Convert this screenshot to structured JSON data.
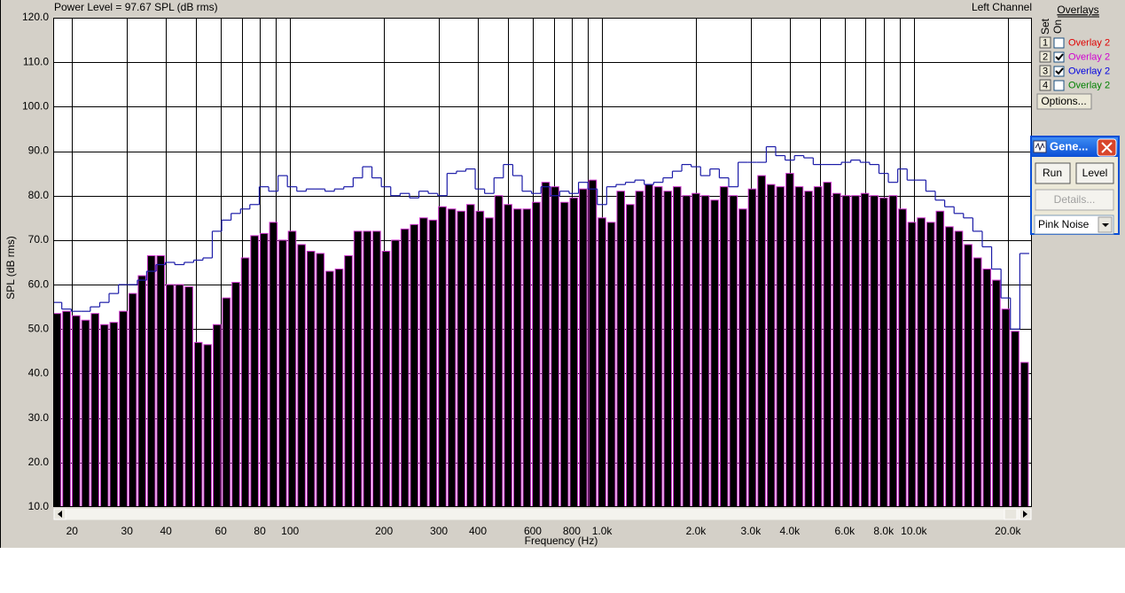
{
  "chart_data": {
    "type": "bar",
    "title": "Power Level = 97.67 SPL (dB rms)",
    "subtitle": "Left Channel",
    "x_label": "Frequency (Hz)",
    "y_label": "SPL (dB rms)",
    "log_x": true,
    "grid": true,
    "x": [
      17.9,
      19.2,
      20.6,
      22.1,
      23.7,
      25.4,
      27.2,
      29.2,
      31.3,
      33.5,
      35.9,
      38.5,
      41.2,
      44.2,
      47.4,
      50.8,
      54.4,
      58.3,
      62.5,
      67.0,
      71.8,
      76.9,
      82.5,
      88.4,
      94.7,
      101.5,
      108.8,
      116.6,
      125,
      134.0,
      143.6,
      153.9,
      164.9,
      176.8,
      189.5,
      203.1,
      217.6,
      233.3,
      250,
      268.0,
      287.2,
      307.8,
      329.9,
      353.6,
      378.9,
      406.1,
      435.3,
      466.5,
      500,
      535.9,
      574.3,
      615.6,
      659.8,
      707.1,
      757.9,
      812.3,
      870.6,
      933.0,
      1000,
      1072,
      1149,
      1231,
      1320,
      1414,
      1516,
      1625,
      1741,
      1866,
      2000,
      2144,
      2297,
      2462,
      2639,
      2828,
      3031,
      3249,
      3482,
      3732,
      4000,
      4287,
      4595,
      4925,
      5278,
      5657,
      6063,
      6498,
      6964,
      7464,
      8000,
      8574,
      9190,
      9849,
      10556,
      11314,
      12126,
      12996,
      13929,
      14929,
      16000,
      17148,
      18379,
      19698,
      21112,
      22627
    ],
    "series": [
      {
        "type": "bar",
        "color": "#000000",
        "edge_color": "#cc33cc",
        "values": [
          53.5,
          54,
          53,
          52,
          53.5,
          51,
          51.5,
          54,
          58,
          62,
          66.5,
          66.5,
          60,
          60,
          59.5,
          47,
          46.5,
          51,
          57,
          60.5,
          66,
          71,
          71.5,
          74,
          70,
          72,
          69,
          67.5,
          67,
          63,
          63.5,
          66.5,
          72,
          72,
          72,
          67.5,
          70,
          72.5,
          73.5,
          75,
          74.5,
          77.5,
          77,
          76.5,
          78,
          76.5,
          75,
          80,
          78,
          77,
          77,
          78.5,
          83,
          82,
          78.5,
          79.5,
          81.5,
          83.5,
          75,
          74,
          81,
          78,
          81,
          82.5,
          82,
          81,
          82,
          80,
          80.5,
          80,
          79,
          82,
          80,
          77,
          81.5,
          84.5,
          82.5,
          82,
          85,
          82,
          81,
          82,
          83,
          80.5,
          80,
          80,
          80.5,
          80,
          79.5,
          80,
          77,
          74,
          75,
          74,
          76.5,
          73,
          72,
          69,
          66,
          63.5,
          61,
          54.5,
          49.5,
          42.5
        ]
      },
      {
        "type": "line",
        "color": "#1c1ca8",
        "values": [
          56,
          54.5,
          54,
          54,
          55,
          56,
          58,
          60,
          60,
          61,
          63,
          64.5,
          65,
          64.5,
          65,
          65.5,
          66,
          72,
          74.5,
          76,
          77,
          78,
          82,
          81,
          84.5,
          82,
          81,
          81.5,
          81.5,
          81,
          81.5,
          82,
          84,
          86.5,
          84,
          82,
          80,
          80.5,
          79.5,
          81,
          80.5,
          80,
          85,
          85.5,
          86,
          81.5,
          80.5,
          84,
          87,
          84.5,
          81,
          80.5,
          82,
          80,
          81,
          80.5,
          83,
          81.5,
          78,
          82,
          82.5,
          83,
          83.5,
          82.5,
          83,
          84,
          85.5,
          87,
          86.5,
          84.5,
          86,
          84,
          82,
          87.5,
          87.5,
          87.5,
          91,
          89,
          88,
          89,
          88.5,
          87,
          87,
          87,
          87.5,
          88,
          87.5,
          87,
          85,
          83,
          86,
          83.5,
          83.5,
          81,
          79,
          77.5,
          76,
          75,
          72,
          68.5,
          63.5,
          57,
          50,
          67
        ]
      }
    ],
    "xlim": [
      17.4,
      23900
    ],
    "xticks": [
      20,
      30,
      40,
      60,
      80,
      100,
      200,
      300,
      400,
      600,
      800,
      {
        "value": 1000,
        "label": "1.0k"
      },
      {
        "value": 2000,
        "label": "2.0k"
      },
      {
        "value": 3000,
        "label": "3.0k"
      },
      {
        "value": 4000,
        "label": "4.0k"
      },
      {
        "value": 6000,
        "label": "6.0k"
      },
      {
        "value": 8000,
        "label": "8.0k"
      },
      {
        "value": 10000,
        "label": "10.0k"
      },
      {
        "value": 20000,
        "label": "20.0k"
      }
    ],
    "xgrid_minor": [
      50,
      70,
      90,
      500,
      700,
      900,
      5000,
      7000,
      9000
    ],
    "ylim": [
      10,
      120
    ],
    "yticks": [
      {
        "value": 10,
        "label": "10.0"
      },
      {
        "value": 20,
        "label": "20.0"
      },
      {
        "value": 30,
        "label": "30.0"
      },
      {
        "value": 40,
        "label": "40.0"
      },
      {
        "value": 50,
        "label": "50.0"
      },
      {
        "value": 60,
        "label": "60.0"
      },
      {
        "value": 70,
        "label": "70.0"
      },
      {
        "value": 80,
        "label": "80.0"
      },
      {
        "value": 90,
        "label": "90.0"
      },
      {
        "value": 100,
        "label": "100.0"
      },
      {
        "value": 110,
        "label": "110.0"
      },
      {
        "value": 120,
        "label": "120.0"
      }
    ]
  },
  "overlays": {
    "title": "Overlays",
    "set_label": "Set",
    "on_label": "On",
    "items": [
      {
        "set": 1,
        "label": "Overlay 2",
        "color": "#e00000",
        "on": false
      },
      {
        "set": 2,
        "label": "Overlay 2",
        "color": "#d000d0",
        "on": true
      },
      {
        "set": 3,
        "label": "Overlay 2",
        "color": "#0000e0",
        "on": true
      },
      {
        "set": 4,
        "label": "Overlay 2",
        "color": "#008000",
        "on": false
      }
    ],
    "options_button": "Options..."
  },
  "generator": {
    "title": "Gene...",
    "run_button": "Run",
    "level_button": "Level",
    "details_button": "Details...",
    "signal": "Pink Noise"
  }
}
